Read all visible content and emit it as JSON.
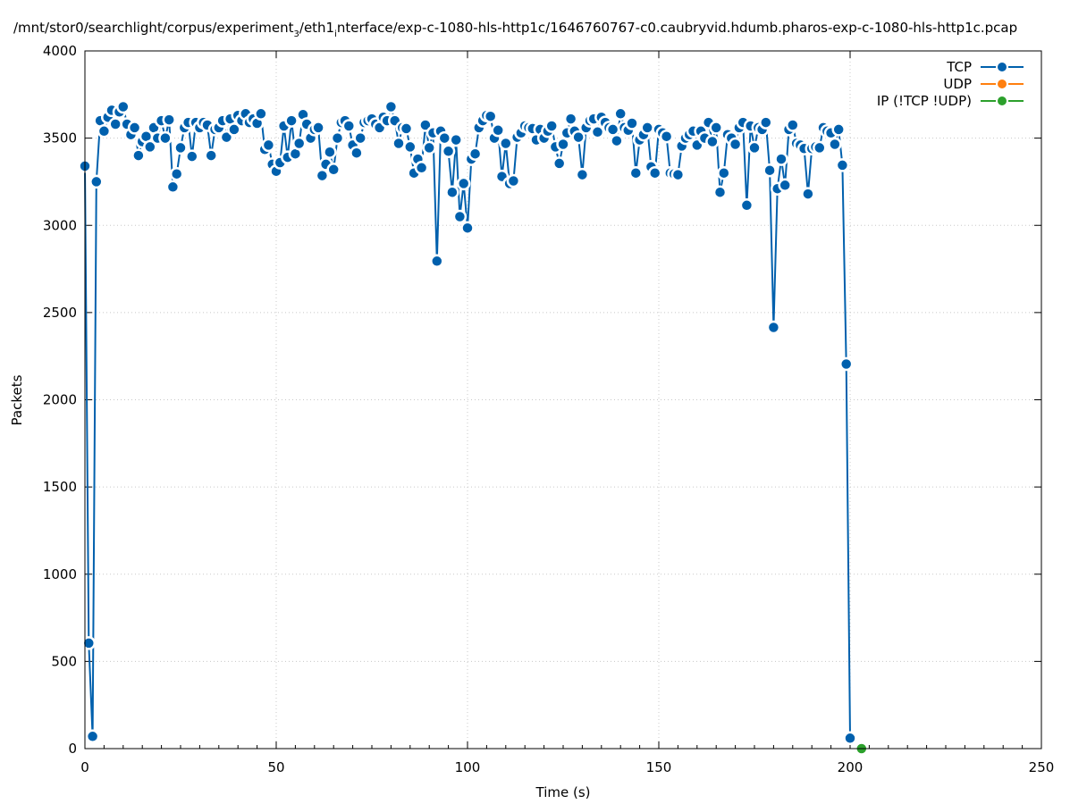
{
  "chart_data": {
    "type": "line",
    "title": "/mnt/stor0/searchlight/corpus/experiment",
    "title_sub": "3",
    "title_rest1": "/eth1",
    "title_sub2": "i",
    "title_rest2": "nterface/exp-c-1080-hls-http1c/1646760767-c0.caubryvid.hdumb.pharos-exp-c-1080-hls-http1c.pcap",
    "xlabel": "Time (s)",
    "ylabel": "Packets",
    "xlim": [
      0,
      250
    ],
    "ylim": [
      0,
      4000
    ],
    "xticks": [
      0,
      50,
      100,
      150,
      200,
      250
    ],
    "yticks": [
      0,
      500,
      1000,
      1500,
      2000,
      2500,
      3000,
      3500,
      4000
    ],
    "grid": true,
    "legend_position": "top-right",
    "series": [
      {
        "name": "TCP",
        "color": "#0060ad",
        "points": [
          [
            0,
            3340
          ],
          [
            1,
            605
          ],
          [
            2,
            70
          ],
          [
            3,
            3250
          ],
          [
            4,
            3600
          ],
          [
            5,
            3540
          ],
          [
            6,
            3620
          ],
          [
            7,
            3660
          ],
          [
            8,
            3580
          ],
          [
            9,
            3650
          ],
          [
            10,
            3680
          ],
          [
            11,
            3580
          ],
          [
            12,
            3520
          ],
          [
            13,
            3560
          ],
          [
            14,
            3400
          ],
          [
            15,
            3480
          ],
          [
            16,
            3510
          ],
          [
            17,
            3450
          ],
          [
            18,
            3560
          ],
          [
            19,
            3500
          ],
          [
            20,
            3600
          ],
          [
            21,
            3500
          ],
          [
            22,
            3605
          ],
          [
            23,
            3220
          ],
          [
            24,
            3295
          ],
          [
            25,
            3445
          ],
          [
            26,
            3560
          ],
          [
            27,
            3590
          ],
          [
            28,
            3395
          ],
          [
            29,
            3590
          ],
          [
            30,
            3560
          ],
          [
            31,
            3590
          ],
          [
            32,
            3575
          ],
          [
            33,
            3400
          ],
          [
            34,
            3550
          ],
          [
            35,
            3560
          ],
          [
            36,
            3600
          ],
          [
            37,
            3505
          ],
          [
            38,
            3610
          ],
          [
            39,
            3550
          ],
          [
            40,
            3630
          ],
          [
            41,
            3600
          ],
          [
            42,
            3640
          ],
          [
            43,
            3590
          ],
          [
            44,
            3610
          ],
          [
            45,
            3585
          ],
          [
            46,
            3640
          ],
          [
            47,
            3435
          ],
          [
            48,
            3460
          ],
          [
            49,
            3350
          ],
          [
            50,
            3310
          ],
          [
            51,
            3360
          ],
          [
            52,
            3570
          ],
          [
            53,
            3390
          ],
          [
            54,
            3600
          ],
          [
            55,
            3410
          ],
          [
            56,
            3470
          ],
          [
            57,
            3635
          ],
          [
            58,
            3580
          ],
          [
            59,
            3500
          ],
          [
            60,
            3550
          ],
          [
            61,
            3560
          ],
          [
            62,
            3285
          ],
          [
            63,
            3350
          ],
          [
            64,
            3420
          ],
          [
            65,
            3320
          ],
          [
            66,
            3500
          ],
          [
            67,
            3590
          ],
          [
            68,
            3600
          ],
          [
            69,
            3570
          ],
          [
            70,
            3460
          ],
          [
            71,
            3415
          ],
          [
            72,
            3500
          ],
          [
            73,
            3590
          ],
          [
            74,
            3600
          ],
          [
            75,
            3610
          ],
          [
            76,
            3580
          ],
          [
            77,
            3560
          ],
          [
            78,
            3620
          ],
          [
            79,
            3600
          ],
          [
            80,
            3680
          ],
          [
            81,
            3600
          ],
          [
            82,
            3470
          ],
          [
            83,
            3560
          ],
          [
            84,
            3555
          ],
          [
            85,
            3450
          ],
          [
            86,
            3300
          ],
          [
            87,
            3380
          ],
          [
            88,
            3330
          ],
          [
            89,
            3575
          ],
          [
            90,
            3445
          ],
          [
            91,
            3530
          ],
          [
            92,
            2795
          ],
          [
            93,
            3540
          ],
          [
            94,
            3500
          ],
          [
            95,
            3425
          ],
          [
            96,
            3190
          ],
          [
            97,
            3490
          ],
          [
            98,
            3050
          ],
          [
            99,
            3240
          ],
          [
            100,
            2985
          ],
          [
            101,
            3380
          ],
          [
            102,
            3410
          ],
          [
            103,
            3560
          ],
          [
            104,
            3600
          ],
          [
            105,
            3630
          ],
          [
            106,
            3625
          ],
          [
            107,
            3500
          ],
          [
            108,
            3545
          ],
          [
            109,
            3280
          ],
          [
            110,
            3470
          ],
          [
            111,
            3240
          ],
          [
            112,
            3255
          ],
          [
            113,
            3505
          ],
          [
            114,
            3530
          ],
          [
            115,
            3570
          ],
          [
            116,
            3560
          ],
          [
            117,
            3555
          ],
          [
            118,
            3490
          ],
          [
            119,
            3550
          ],
          [
            120,
            3500
          ],
          [
            121,
            3540
          ],
          [
            122,
            3570
          ],
          [
            123,
            3450
          ],
          [
            124,
            3355
          ],
          [
            125,
            3465
          ],
          [
            126,
            3530
          ],
          [
            127,
            3610
          ],
          [
            128,
            3540
          ],
          [
            129,
            3505
          ],
          [
            130,
            3290
          ],
          [
            131,
            3560
          ],
          [
            132,
            3600
          ],
          [
            133,
            3610
          ],
          [
            134,
            3535
          ],
          [
            135,
            3620
          ],
          [
            136,
            3590
          ],
          [
            137,
            3560
          ],
          [
            138,
            3550
          ],
          [
            139,
            3485
          ],
          [
            140,
            3640
          ],
          [
            141,
            3560
          ],
          [
            142,
            3545
          ],
          [
            143,
            3585
          ],
          [
            144,
            3300
          ],
          [
            145,
            3490
          ],
          [
            146,
            3520
          ],
          [
            147,
            3560
          ],
          [
            148,
            3335
          ],
          [
            149,
            3300
          ],
          [
            150,
            3550
          ],
          [
            151,
            3530
          ],
          [
            152,
            3510
          ],
          [
            153,
            3300
          ],
          [
            154,
            3295
          ],
          [
            155,
            3290
          ],
          [
            156,
            3455
          ],
          [
            157,
            3500
          ],
          [
            158,
            3520
          ],
          [
            159,
            3540
          ],
          [
            160,
            3460
          ],
          [
            161,
            3540
          ],
          [
            162,
            3500
          ],
          [
            163,
            3590
          ],
          [
            164,
            3480
          ],
          [
            165,
            3560
          ],
          [
            166,
            3190
          ],
          [
            167,
            3300
          ],
          [
            168,
            3520
          ],
          [
            169,
            3500
          ],
          [
            170,
            3465
          ],
          [
            171,
            3560
          ],
          [
            172,
            3590
          ],
          [
            173,
            3115
          ],
          [
            174,
            3570
          ],
          [
            175,
            3445
          ],
          [
            176,
            3560
          ],
          [
            177,
            3550
          ],
          [
            178,
            3590
          ],
          [
            179,
            3315
          ],
          [
            180,
            2415
          ],
          [
            181,
            3210
          ],
          [
            182,
            3380
          ],
          [
            183,
            3230
          ],
          [
            184,
            3550
          ],
          [
            185,
            3575
          ],
          [
            186,
            3470
          ],
          [
            187,
            3460
          ],
          [
            188,
            3440
          ],
          [
            189,
            3180
          ],
          [
            190,
            3440
          ],
          [
            191,
            3450
          ],
          [
            192,
            3445
          ],
          [
            193,
            3560
          ],
          [
            194,
            3540
          ],
          [
            195,
            3530
          ],
          [
            196,
            3465
          ],
          [
            197,
            3550
          ],
          [
            198,
            3345
          ],
          [
            199,
            2205
          ],
          [
            200,
            60
          ]
        ]
      },
      {
        "name": "UDP",
        "color": "#ff7f0e",
        "points": []
      },
      {
        "name": "IP (!TCP  !UDP)",
        "color": "#2ca02c",
        "points": [
          [
            203,
            0
          ]
        ]
      }
    ]
  }
}
